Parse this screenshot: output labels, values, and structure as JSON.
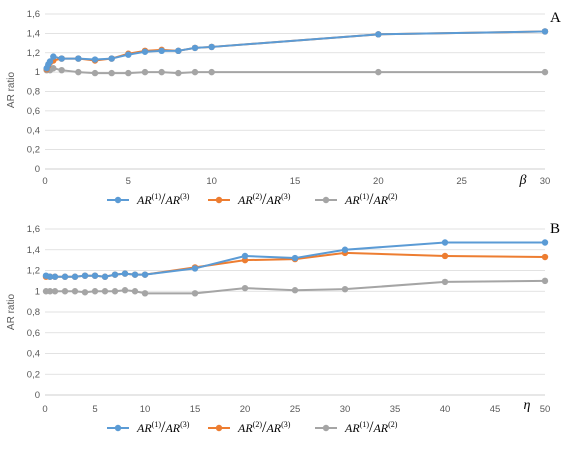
{
  "colors": {
    "blue": "#5b9bd5",
    "orange": "#ed7d31",
    "gray": "#a5a5a5"
  },
  "legend": {
    "items": [
      {
        "num": "AR",
        "num_sup": "(1)",
        "sep": "/",
        "den": "AR",
        "den_sup": "(3)",
        "color": "#5b9bd5"
      },
      {
        "num": "AR",
        "num_sup": "(2)",
        "sep": "/",
        "den": "AR",
        "den_sup": "(3)",
        "color": "#ed7d31"
      },
      {
        "num": "AR",
        "num_sup": "(1)",
        "sep": "/",
        "den": "AR",
        "den_sup": "(2)",
        "color": "#a5a5a5"
      }
    ]
  },
  "chart_data": [
    {
      "type": "line",
      "panel_label": "A",
      "xlabel": "β",
      "ylabel": "AR ratio",
      "xlim": [
        0,
        30
      ],
      "ylim": [
        0,
        1.6
      ],
      "xticks": [
        "0",
        "5",
        "10",
        "15",
        "20",
        "25",
        "30"
      ],
      "yticks": [
        "0",
        "0,2",
        "0,4",
        "0,6",
        "0,8",
        "1",
        "1,2",
        "1,4",
        "1,6"
      ],
      "grid": true,
      "legend_position": "bottom",
      "x": [
        0.1,
        0.2,
        0.3,
        0.5,
        1,
        2,
        3,
        4,
        5,
        6,
        7,
        8,
        9,
        10,
        20,
        30
      ],
      "series": [
        {
          "values": [
            1.04,
            1.08,
            1.11,
            1.16,
            1.14,
            1.14,
            1.13,
            1.14,
            1.18,
            1.21,
            1.22,
            1.22,
            1.25,
            1.26,
            1.39,
            1.42
          ]
        },
        {
          "values": [
            1.03,
            1.07,
            1.1,
            1.12,
            1.14,
            1.14,
            1.12,
            1.14,
            1.19,
            1.22,
            1.23,
            1.22,
            1.25,
            1.26,
            1.39,
            1.42
          ]
        },
        {
          "values": [
            1.02,
            1.03,
            1.02,
            1.04,
            1.02,
            1.0,
            0.99,
            0.99,
            0.99,
            1.0,
            1.0,
            0.99,
            1.0,
            1.0,
            1.0,
            1.0
          ]
        }
      ]
    },
    {
      "type": "line",
      "panel_label": "B",
      "xlabel": "η",
      "ylabel": "AR ratio",
      "xlim": [
        0,
        50
      ],
      "ylim": [
        0,
        1.6
      ],
      "xticks": [
        "0",
        "5",
        "10",
        "15",
        "20",
        "25",
        "30",
        "35",
        "40",
        "45",
        "50"
      ],
      "yticks": [
        "0",
        "0,2",
        "0,4",
        "0,6",
        "0,8",
        "1",
        "1,2",
        "1,4",
        "1,6"
      ],
      "grid": true,
      "legend_position": "bottom",
      "x": [
        0.1,
        0.5,
        1,
        2,
        3,
        4,
        5,
        6,
        7,
        8,
        9,
        10,
        15,
        20,
        25,
        30,
        40,
        50
      ],
      "series": [
        {
          "values": [
            1.15,
            1.14,
            1.14,
            1.14,
            1.14,
            1.15,
            1.15,
            1.14,
            1.16,
            1.17,
            1.16,
            1.16,
            1.22,
            1.34,
            1.32,
            1.4,
            1.47,
            1.47
          ]
        },
        {
          "values": [
            1.14,
            1.14,
            1.14,
            1.14,
            1.14,
            1.15,
            1.15,
            1.14,
            1.16,
            1.17,
            1.16,
            1.16,
            1.23,
            1.3,
            1.31,
            1.37,
            1.34,
            1.33
          ]
        },
        {
          "values": [
            1.0,
            1.0,
            1.0,
            1.0,
            1.0,
            0.99,
            1.0,
            1.0,
            1.0,
            1.01,
            1.0,
            0.98,
            0.98,
            1.03,
            1.01,
            1.02,
            1.09,
            1.1
          ]
        }
      ]
    }
  ]
}
